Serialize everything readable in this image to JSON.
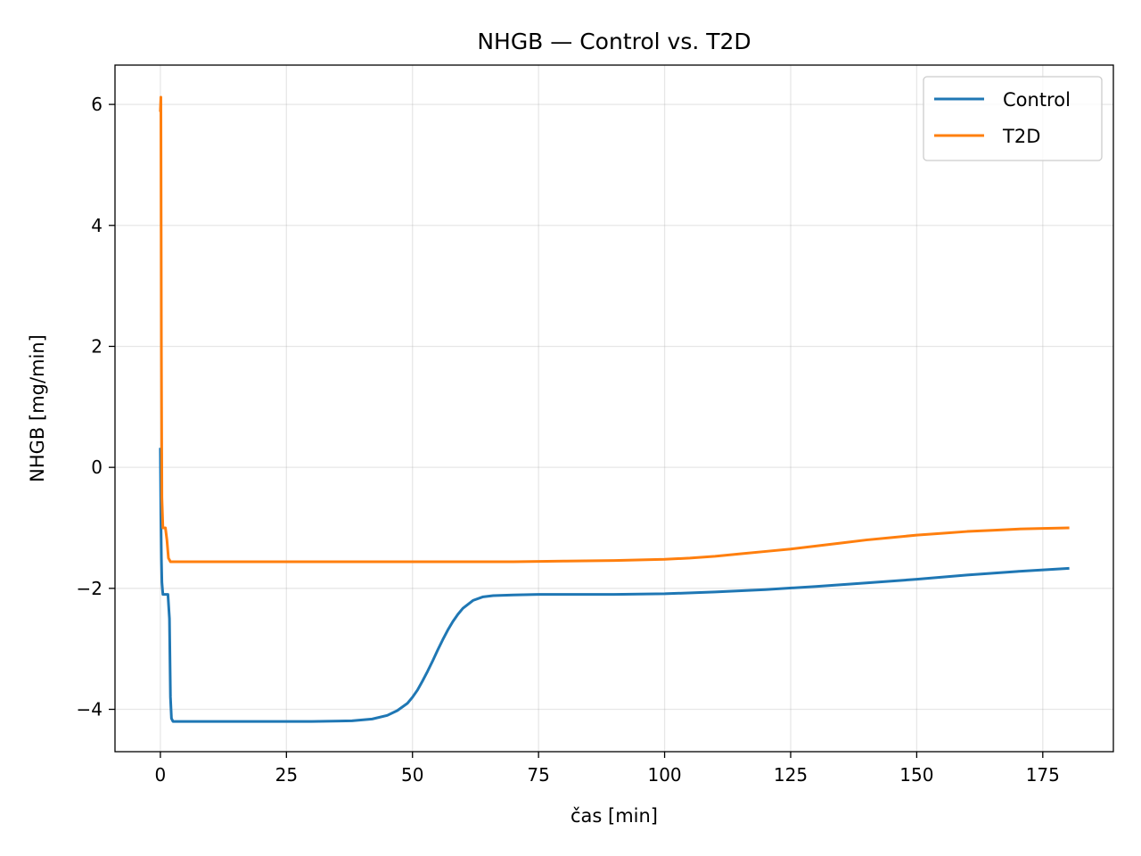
{
  "chart_data": {
    "type": "line",
    "title": "NHGB — Control vs. T2D",
    "xlabel": "čas [min]",
    "ylabel": "NHGB [mg/min]",
    "xlim": [
      -9,
      189
    ],
    "ylim": [
      -4.7,
      6.65
    ],
    "xticks": [
      0,
      25,
      50,
      75,
      100,
      125,
      150,
      175
    ],
    "yticks": [
      -4,
      -2,
      0,
      2,
      4,
      6
    ],
    "xtick_labels": [
      "0",
      "25",
      "50",
      "75",
      "100",
      "125",
      "150",
      "175"
    ],
    "ytick_labels": [
      "−4",
      "−2",
      "0",
      "2",
      "4",
      "6"
    ],
    "grid": true,
    "legend_position": "top-right",
    "series": [
      {
        "name": "Control",
        "color": "#1f77b4",
        "x": [
          0,
          0.1,
          0.2,
          0.3,
          0.5,
          1.0,
          1.5,
          1.8,
          2.0,
          2.2,
          2.5,
          3,
          10,
          20,
          30,
          38,
          42,
          45,
          47,
          49,
          50,
          51,
          52,
          53,
          54,
          55,
          56,
          57,
          58,
          59,
          60,
          62,
          64,
          66,
          70,
          75,
          90,
          100,
          110,
          120,
          130,
          140,
          150,
          160,
          170,
          180
        ],
        "y": [
          0.3,
          -0.8,
          -1.5,
          -1.9,
          -2.1,
          -2.1,
          -2.1,
          -2.5,
          -3.8,
          -4.15,
          -4.2,
          -4.2,
          -4.2,
          -4.2,
          -4.2,
          -4.19,
          -4.16,
          -4.1,
          -4.02,
          -3.9,
          -3.8,
          -3.68,
          -3.53,
          -3.37,
          -3.2,
          -3.02,
          -2.85,
          -2.69,
          -2.55,
          -2.43,
          -2.33,
          -2.2,
          -2.14,
          -2.12,
          -2.11,
          -2.1,
          -2.1,
          -2.09,
          -2.06,
          -2.02,
          -1.97,
          -1.91,
          -1.85,
          -1.78,
          -1.72,
          -1.67
        ]
      },
      {
        "name": "T2D",
        "color": "#ff7f0e",
        "x": [
          0,
          0.1,
          0.2,
          0.3,
          0.5,
          0.8,
          1.0,
          1.3,
          1.6,
          2.0,
          2.5,
          3,
          10,
          20,
          30,
          40,
          50,
          60,
          70,
          80,
          90,
          100,
          105,
          110,
          115,
          120,
          125,
          130,
          135,
          140,
          145,
          150,
          155,
          160,
          165,
          170,
          175,
          180
        ],
        "y": [
          5.9,
          6.12,
          2.0,
          -0.5,
          -1.0,
          -1.0,
          -1.0,
          -1.2,
          -1.5,
          -1.56,
          -1.56,
          -1.56,
          -1.56,
          -1.56,
          -1.56,
          -1.56,
          -1.56,
          -1.56,
          -1.56,
          -1.55,
          -1.54,
          -1.52,
          -1.5,
          -1.47,
          -1.43,
          -1.39,
          -1.35,
          -1.3,
          -1.25,
          -1.2,
          -1.16,
          -1.12,
          -1.09,
          -1.06,
          -1.04,
          -1.02,
          -1.01,
          -1.0
        ]
      }
    ]
  }
}
